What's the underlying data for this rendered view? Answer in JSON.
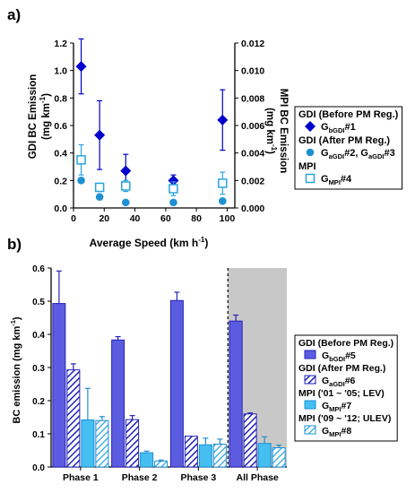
{
  "chart_data": [
    {
      "panel_label": "a)",
      "type": "scatter",
      "xlabel_main": "Average Speed (km h",
      "xlabel_sup": "-1",
      "xlabel_end": ")",
      "ylabel_left": "GDI BC Emission",
      "ylabel_left_unit": "(mg km",
      "ylabel_left_sup": "-1",
      "ylabel_right": "MPI BC Emission",
      "ylabel_right_unit": "(mg km",
      "ylabel_right_sup": "-1",
      "xlim": [
        0,
        105
      ],
      "ylim_left": [
        0,
        1.2
      ],
      "ylim_right": [
        0,
        0.012
      ],
      "x_ticks": [
        "0",
        "20",
        "40",
        "60",
        "80",
        "100"
      ],
      "y_left_ticks": [
        "0.0",
        "0.2",
        "0.4",
        "0.6",
        "0.8",
        "1.0",
        "1.2"
      ],
      "y_right_ticks": [
        "0.000",
        "0.002",
        "0.004",
        "0.006",
        "0.008",
        "0.010",
        "0.012"
      ],
      "series": [
        {
          "name": "G_bGDI#1",
          "marker": "diamond",
          "color": "#0000cc",
          "axis": "left",
          "x": [
            5,
            17,
            34,
            65,
            97
          ],
          "y": [
            1.03,
            0.53,
            0.27,
            0.2,
            0.64
          ],
          "err": [
            0.2,
            0.25,
            0.12,
            0.04,
            0.22
          ]
        },
        {
          "name": "G_aGDI#2, G_aGDI#3",
          "marker": "circle",
          "color": "#1e90d2",
          "axis": "left",
          "x": [
            5,
            17,
            34,
            65,
            97
          ],
          "y": [
            0.2,
            0.08,
            0.04,
            0.04,
            0.05
          ],
          "err": [
            0,
            0,
            0,
            0,
            0
          ]
        },
        {
          "name": "G_MPI#4",
          "marker": "open-square",
          "color": "#29a3df",
          "axis": "right",
          "x": [
            5,
            17,
            34,
            65,
            97
          ],
          "y": [
            0.0035,
            0.0015,
            0.0016,
            0.0014,
            0.0018
          ],
          "err": [
            0.0011,
            0.0003,
            0.0004,
            0.0005,
            0.0008
          ]
        }
      ],
      "legend": [
        {
          "heading": "GDI (Before PM Reg.)"
        },
        {
          "marker": "diamond",
          "label": "G",
          "sub": "bGDI",
          "suffix": "#1"
        },
        {
          "heading": "GDI (After PM Reg.)"
        },
        {
          "marker": "circle",
          "label": "G",
          "sub": "aGDI",
          "suffix": "#2, G",
          "sub2": "aGDI",
          "suffix2": "#3"
        },
        {
          "heading": "MPI"
        },
        {
          "marker": "open-square",
          "label": "G",
          "sub": "MPI",
          "suffix": "#4"
        }
      ]
    },
    {
      "panel_label": "b)",
      "type": "bar",
      "ylabel": "BC emission (mg km",
      "ylabel_sup": "-1",
      "ylim": [
        0,
        0.6
      ],
      "y_ticks": [
        "0.0",
        "0.1",
        "0.2",
        "0.3",
        "0.4",
        "0.5",
        "0.6"
      ],
      "categories": [
        "Phase 1",
        "Phase 2",
        "Phase 3",
        "All Phase"
      ],
      "highlight_category": "All Phase",
      "series": [
        {
          "name": "G_bGDI#5",
          "fill": "solid-blue",
          "values": [
            0.493,
            0.383,
            0.502,
            0.44
          ],
          "err": [
            0.098,
            0.01,
            0.025,
            0.018
          ]
        },
        {
          "name": "G_aGDI#6",
          "fill": "hatch-blue",
          "values": [
            0.293,
            0.143,
            0.093,
            0.16
          ],
          "err": [
            0.018,
            0.012,
            0,
            0.003
          ]
        },
        {
          "name": "G_MPI#7",
          "fill": "solid-cyan",
          "values": [
            0.142,
            0.043,
            0.067,
            0.071
          ],
          "err": [
            0.095,
            0.005,
            0.02,
            0.02
          ]
        },
        {
          "name": "G_MPI#8",
          "fill": "hatch-cyan",
          "values": [
            0.14,
            0.018,
            0.069,
            0.058
          ],
          "err": [
            0.012,
            0.003,
            0.015,
            0.008
          ]
        }
      ],
      "legend": [
        {
          "heading": "GDI (Before PM Reg.)"
        },
        {
          "swatch": "solid-blue",
          "label": "G",
          "sub": "bGDI",
          "suffix": "#5"
        },
        {
          "heading": "GDI (After PM Reg.)"
        },
        {
          "swatch": "hatch-blue",
          "label": "G",
          "sub": "aGDI",
          "suffix": "#6"
        },
        {
          "heading": "MPI ('01 ~ '05; LEV)"
        },
        {
          "swatch": "solid-cyan",
          "label": "G",
          "sub": "MPI",
          "suffix": "#7"
        },
        {
          "heading": "MPI ('09 ~ '12; ULEV)"
        },
        {
          "swatch": "hatch-cyan",
          "label": "G",
          "sub": "MPI",
          "suffix": "#8"
        }
      ]
    }
  ]
}
